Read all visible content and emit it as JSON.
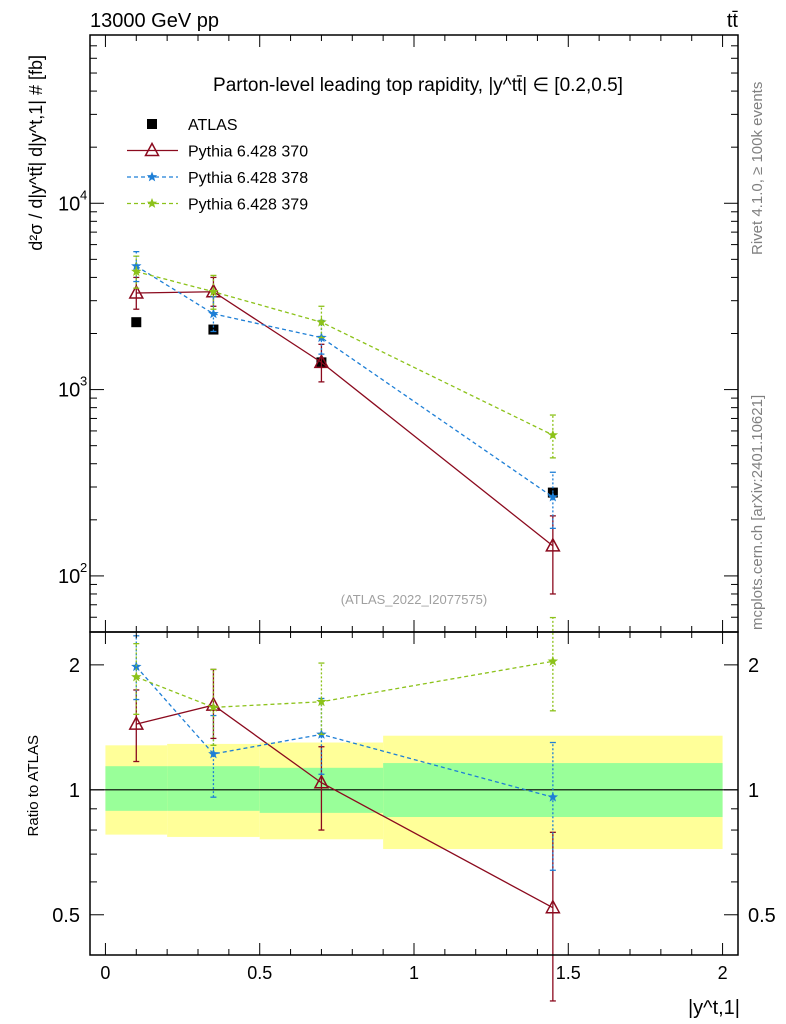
{
  "header": {
    "left": "13000 GeV pp",
    "right": "tt̄"
  },
  "side": {
    "rivet": "Rivet 4.1.0, ≥ 100k events",
    "mcplots": "mcplots.cern.ch [arXiv:2401.10621]"
  },
  "colors": {
    "atlas": "#000000",
    "p370": "#8b0a1e",
    "p378": "#1e7fd6",
    "p379": "#8cc21a",
    "band_inner": "#99ff99",
    "band_outer": "#ffff99"
  },
  "chart_data": {
    "type": "scatter",
    "title": "Parton-level leading top rapidity, |y^tt̄| ∈ [0.2,0.5]",
    "analysis_label": "(ATLAS_2022_I2077575)",
    "ylabel": "d²σ / d|y^tt̄| d|y^t,1| # [fb]",
    "xlabel": "|y^t,1|",
    "ratio_ylabel": "Ratio to ATLAS",
    "xlim": [
      -0.05,
      2.05
    ],
    "ylim": [
      50,
      80000
    ],
    "ratio_ylim": [
      0.4,
      2.4
    ],
    "x_ticks": [
      "0",
      "0.5",
      "1",
      "1.5",
      "2"
    ],
    "ratio_ticks": [
      "0.5",
      "1",
      "2"
    ],
    "bins": [
      [
        0.0,
        0.2
      ],
      [
        0.2,
        0.5
      ],
      [
        0.5,
        0.9
      ],
      [
        0.9,
        2.0
      ]
    ],
    "band_inner": [
      [
        0.89,
        1.14
      ],
      [
        0.89,
        1.14
      ],
      [
        0.88,
        1.13
      ],
      [
        0.86,
        1.16
      ]
    ],
    "band_outer": [
      [
        0.78,
        1.28
      ],
      [
        0.77,
        1.29
      ],
      [
        0.76,
        1.3
      ],
      [
        0.72,
        1.35
      ]
    ],
    "series": [
      {
        "name": "ATLAS",
        "key": "atlas",
        "marker": "square",
        "dash": "none",
        "line": false,
        "x": [
          0.1,
          0.35,
          0.7,
          1.45
        ],
        "y": [
          2300,
          2100,
          1400,
          280
        ],
        "yerr": [
          [
            0,
            0
          ],
          [
            0,
            0
          ],
          [
            0,
            0
          ],
          [
            0,
            0
          ]
        ],
        "ratio": [
          1,
          1,
          1,
          1
        ],
        "ratio_err": [
          [
            0,
            0
          ],
          [
            0,
            0
          ],
          [
            0,
            0
          ],
          [
            0,
            0
          ]
        ]
      },
      {
        "name": "Pythia 6.428 370",
        "key": "p370",
        "marker": "triangle",
        "dash": "none",
        "line": true,
        "x": [
          0.1,
          0.35,
          0.7,
          1.45
        ],
        "y": [
          3300,
          3350,
          1400,
          145
        ],
        "yerr": [
          [
            2700,
            4000
          ],
          [
            2800,
            4000
          ],
          [
            1100,
            1750
          ],
          [
            80,
            210
          ]
        ],
        "ratio": [
          1.44,
          1.6,
          1.04,
          0.52
        ],
        "ratio_err": [
          [
            1.17,
            1.74
          ],
          [
            1.33,
            1.95
          ],
          [
            0.8,
            1.27
          ],
          [
            0.31,
            0.79
          ]
        ]
      },
      {
        "name": "Pythia 6.428 378",
        "key": "p378",
        "marker": "star",
        "dash": "4,3",
        "line": true,
        "x": [
          0.1,
          0.35,
          0.7,
          1.45
        ],
        "y": [
          4600,
          2550,
          1900,
          265
        ],
        "yerr": [
          [
            3800,
            5500
          ],
          [
            2050,
            3150
          ],
          [
            1550,
            2350
          ],
          [
            180,
            360
          ]
        ],
        "ratio": [
          1.98,
          1.22,
          1.36,
          0.96
        ],
        "ratio_err": [
          [
            1.65,
            2.35
          ],
          [
            0.96,
            1.51
          ],
          [
            1.09,
            1.66
          ],
          [
            0.64,
            1.3
          ]
        ]
      },
      {
        "name": "Pythia 6.428 379",
        "key": "p379",
        "marker": "star",
        "dash": "4,3",
        "line": true,
        "x": [
          0.1,
          0.35,
          0.7,
          1.45
        ],
        "y": [
          4300,
          3350,
          2300,
          570
        ],
        "yerr": [
          [
            3500,
            5200
          ],
          [
            2700,
            4100
          ],
          [
            1900,
            2800
          ],
          [
            430,
            730
          ]
        ],
        "ratio": [
          1.87,
          1.58,
          1.63,
          2.04
        ],
        "ratio_err": [
          [
            1.52,
            2.25
          ],
          [
            1.28,
            1.95
          ],
          [
            1.36,
            2.02
          ],
          [
            1.55,
            2.6
          ]
        ]
      }
    ]
  }
}
